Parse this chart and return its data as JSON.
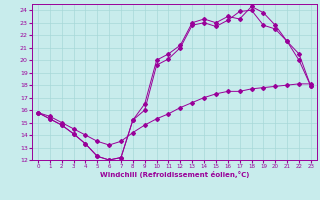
{
  "xlabel": "Windchill (Refroidissement éolien,°C)",
  "bg_color": "#c8ecec",
  "line_color": "#990099",
  "grid_color": "#a8d8d8",
  "xlim": [
    -0.5,
    23.5
  ],
  "ylim": [
    12,
    24.5
  ],
  "xticks": [
    0,
    1,
    2,
    3,
    4,
    5,
    6,
    7,
    8,
    9,
    10,
    11,
    12,
    13,
    14,
    15,
    16,
    17,
    18,
    19,
    20,
    21,
    22,
    23
  ],
  "yticks": [
    12,
    13,
    14,
    15,
    16,
    17,
    18,
    19,
    20,
    21,
    22,
    23,
    24
  ],
  "line1_x": [
    0,
    1,
    2,
    3,
    4,
    5,
    6,
    7,
    8,
    9,
    10,
    11,
    12,
    13,
    14,
    15,
    16,
    17,
    18,
    19,
    20,
    21,
    22,
    23
  ],
  "line1_y": [
    15.8,
    15.5,
    15.0,
    14.5,
    14.0,
    13.5,
    13.2,
    13.5,
    14.2,
    14.8,
    15.3,
    15.7,
    16.2,
    16.6,
    17.0,
    17.3,
    17.5,
    17.5,
    17.7,
    17.8,
    17.9,
    18.0,
    18.1,
    18.1
  ],
  "line2_x": [
    0,
    1,
    2,
    3,
    4,
    5,
    6,
    7,
    8,
    9,
    10,
    11,
    12,
    13,
    14,
    15,
    16,
    17,
    18,
    19,
    20,
    21,
    22,
    23
  ],
  "line2_y": [
    15.8,
    15.3,
    14.8,
    14.1,
    13.3,
    12.3,
    12.0,
    12.2,
    15.2,
    16.5,
    20.0,
    20.5,
    21.2,
    23.0,
    23.3,
    23.0,
    23.5,
    23.3,
    24.3,
    23.8,
    22.8,
    21.5,
    20.5,
    17.9
  ],
  "line3_x": [
    0,
    1,
    2,
    3,
    4,
    5,
    6,
    7,
    8,
    9,
    10,
    11,
    12,
    13,
    14,
    15,
    16,
    17,
    18,
    19,
    20,
    21,
    22,
    23
  ],
  "line3_y": [
    15.8,
    15.3,
    14.8,
    14.1,
    13.3,
    12.3,
    12.0,
    12.2,
    15.2,
    16.0,
    19.6,
    20.1,
    21.0,
    22.8,
    23.0,
    22.7,
    23.2,
    23.9,
    24.0,
    22.8,
    22.5,
    21.5,
    20.0,
    17.9
  ]
}
